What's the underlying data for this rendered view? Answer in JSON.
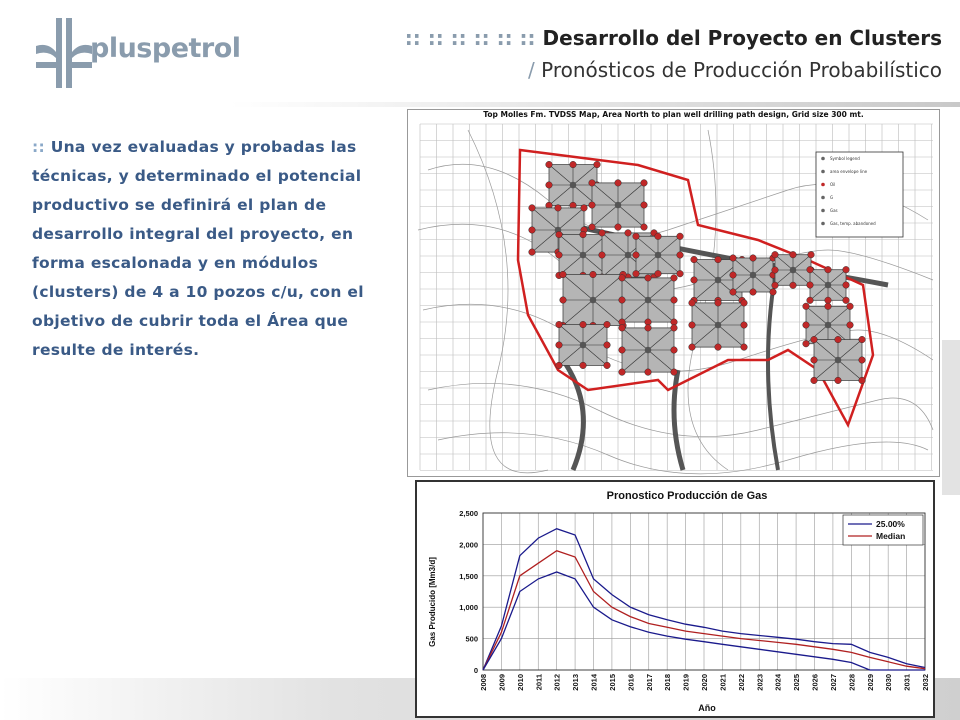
{
  "header": {
    "logo_text": "pluspetrol",
    "title_prefix": ":: :: :: :: :: ::",
    "title_main": "Desarrollo del Proyecto en Clusters",
    "subtitle_prefix": "/",
    "subtitle_main": "Pronósticos de Producción Probabilístico"
  },
  "body": {
    "prefix": "::",
    "text": "Una vez evaluadas y probadas las técnicas, y determinado el potencial productivo se definirá el plan de desarrollo integral del proyecto, en forma escalonada y en módulos (clusters) de 4 a 10 pozos c/u, con el objetivo de cubrir toda el Área que resulte de interés."
  },
  "map": {
    "title": "Top Molles Fm. TVDSS Map, Area North to plan well drilling path design, Grid size 300 mt.",
    "legend_items": [
      "Symbol legend",
      "area envelope line",
      "Oil",
      "G",
      "Gas",
      "Gas, temp. abandoned"
    ]
  },
  "chart_data": {
    "type": "line",
    "title": "Pronostico Producción de Gas",
    "xlabel": "Año",
    "ylabel": "Gas Producido [Mm3/d]",
    "ylim": [
      0,
      2500
    ],
    "yticks": [
      "0",
      "500",
      "1,000",
      "1,500",
      "2,000",
      "2,500"
    ],
    "categories": [
      "2008",
      "2009",
      "2010",
      "2011",
      "2012",
      "2013",
      "2014",
      "2015",
      "2016",
      "2017",
      "2018",
      "2019",
      "2020",
      "2021",
      "2022",
      "2023",
      "2024",
      "2025",
      "2026",
      "2027",
      "2028",
      "2029",
      "2030",
      "2031",
      "2032"
    ],
    "series": [
      {
        "name": "25.00%",
        "color": "#1a1a8c",
        "values": [
          0,
          700,
          1820,
          2100,
          2250,
          2150,
          1450,
          1200,
          1000,
          880,
          800,
          730,
          680,
          620,
          580,
          550,
          520,
          490,
          450,
          420,
          410,
          280,
          200,
          100,
          40
        ]
      },
      {
        "name": "Median",
        "color": "#b02020",
        "values": [
          0,
          600,
          1500,
          1700,
          1900,
          1800,
          1250,
          1000,
          850,
          740,
          680,
          620,
          580,
          540,
          500,
          470,
          440,
          410,
          370,
          330,
          280,
          200,
          130,
          60,
          20
        ]
      },
      {
        "name": "",
        "color": "#1a1a8c",
        "values": [
          0,
          500,
          1250,
          1450,
          1560,
          1450,
          1000,
          800,
          690,
          600,
          540,
          490,
          450,
          410,
          370,
          330,
          290,
          250,
          210,
          170,
          120,
          0,
          0,
          0,
          0
        ]
      }
    ],
    "legend_position": "top-right",
    "grid": true
  }
}
